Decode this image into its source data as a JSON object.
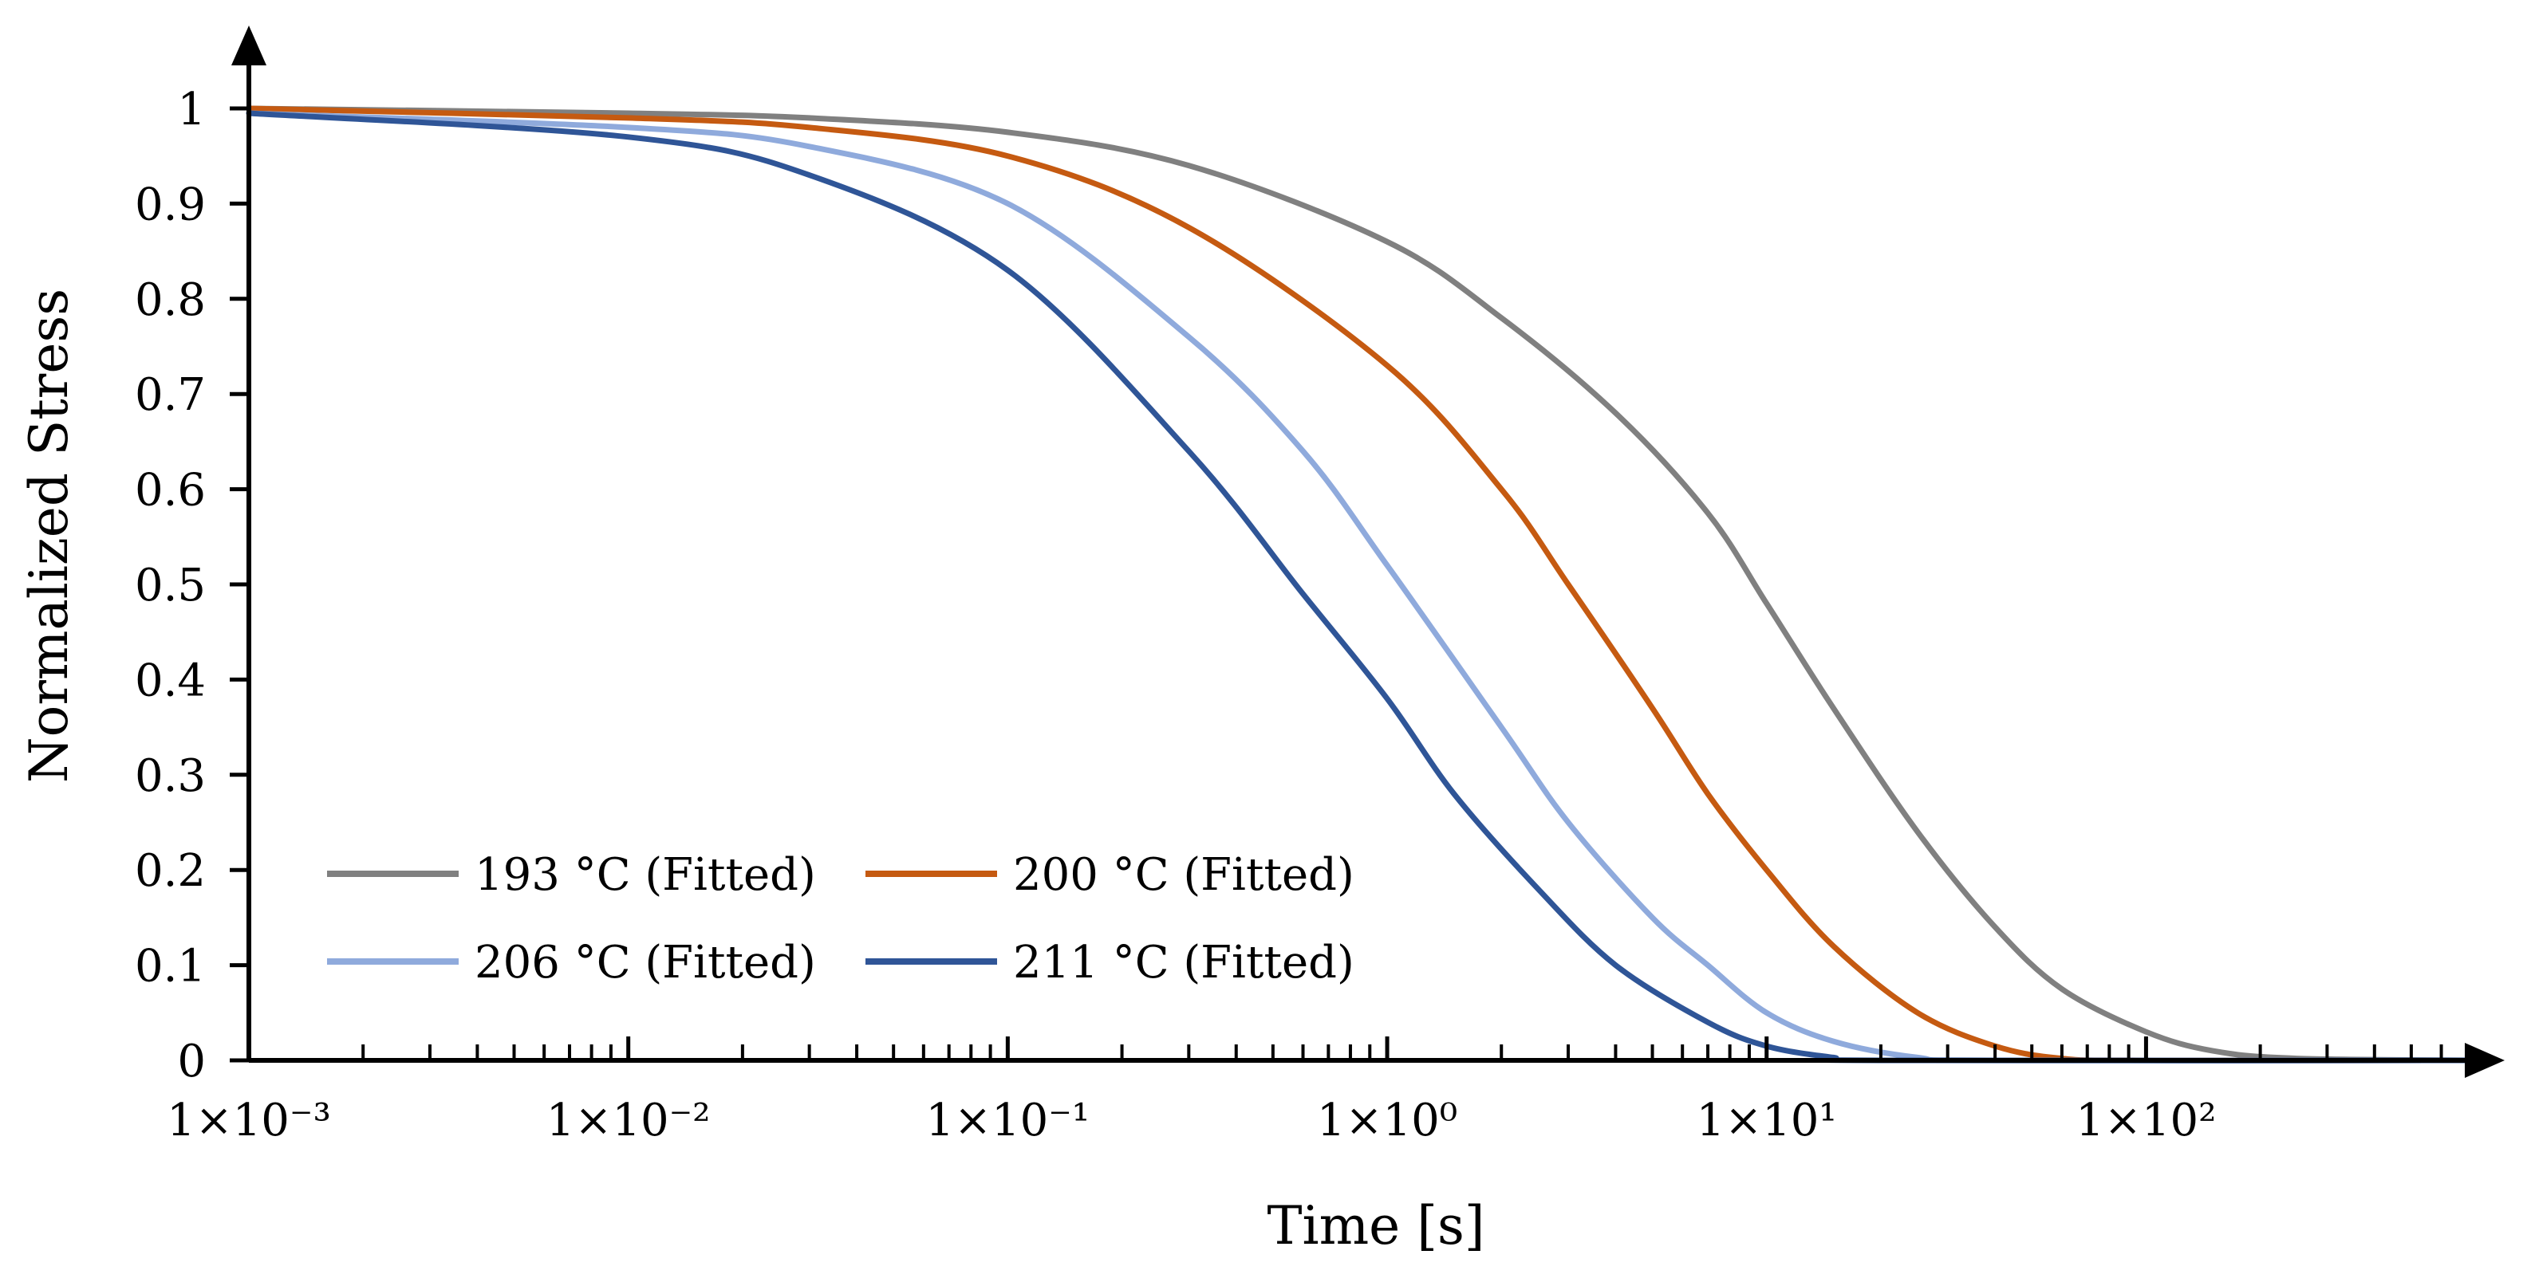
{
  "chart_data": {
    "type": "line",
    "title": "",
    "xlabel": "Time [s]",
    "ylabel": "Normalized Stress",
    "xscale": "log",
    "xlim": [
      0.001,
      800
    ],
    "ylim": [
      0,
      1
    ],
    "grid": false,
    "legend_position": "bottom-left",
    "x_ticks": [
      {
        "value": 0.001,
        "label": "1×10⁻³"
      },
      {
        "value": 0.01,
        "label": "1×10⁻²"
      },
      {
        "value": 0.1,
        "label": "1×10⁻¹"
      },
      {
        "value": 1,
        "label": "1×10⁰"
      },
      {
        "value": 10,
        "label": "1×10¹"
      },
      {
        "value": 100,
        "label": "1×10²"
      }
    ],
    "y_ticks": [
      {
        "value": 0,
        "label": "0"
      },
      {
        "value": 0.1,
        "label": "0.1"
      },
      {
        "value": 0.2,
        "label": "0.2"
      },
      {
        "value": 0.3,
        "label": "0.3"
      },
      {
        "value": 0.4,
        "label": "0.4"
      },
      {
        "value": 0.5,
        "label": "0.5"
      },
      {
        "value": 0.6,
        "label": "0.6"
      },
      {
        "value": 0.7,
        "label": "0.7"
      },
      {
        "value": 0.8,
        "label": "0.8"
      },
      {
        "value": 0.9,
        "label": "0.9"
      },
      {
        "value": 1,
        "label": "1"
      }
    ],
    "series": [
      {
        "name": "193 °C (Fitted)",
        "color": "#808080",
        "x": [
          0.001,
          0.01,
          0.03,
          0.1,
          0.3,
          1,
          2,
          4,
          7,
          10,
          15,
          25,
          40,
          60,
          100,
          150,
          250,
          800
        ],
        "y": [
          1.0,
          0.995,
          0.99,
          0.975,
          0.94,
          0.86,
          0.78,
          0.68,
          0.575,
          0.48,
          0.37,
          0.24,
          0.14,
          0.075,
          0.03,
          0.01,
          0.002,
          0.0
        ]
      },
      {
        "name": "200 °C (Fitted)",
        "color": "#c55a11",
        "x": [
          0.001,
          0.01,
          0.03,
          0.1,
          0.3,
          1,
          2,
          3,
          5,
          7,
          10,
          15,
          25,
          40,
          60,
          100,
          800
        ],
        "y": [
          1.0,
          0.99,
          0.98,
          0.95,
          0.875,
          0.73,
          0.6,
          0.5,
          0.37,
          0.28,
          0.2,
          0.12,
          0.05,
          0.015,
          0.002,
          0.0,
          0.0
        ]
      },
      {
        "name": "206 °C (Fitted)",
        "color": "#8faadc",
        "x": [
          0.001,
          0.01,
          0.03,
          0.1,
          0.3,
          0.6,
          1,
          2,
          3,
          5,
          7,
          10,
          15,
          25,
          40,
          800
        ],
        "y": [
          0.995,
          0.98,
          0.96,
          0.9,
          0.76,
          0.64,
          0.52,
          0.35,
          0.25,
          0.15,
          0.1,
          0.05,
          0.02,
          0.003,
          0.0,
          0.0
        ]
      },
      {
        "name": "211 °C (Fitted)",
        "color": "#2f5597",
        "x": [
          0.001,
          0.01,
          0.03,
          0.1,
          0.3,
          0.6,
          1,
          1.5,
          2.5,
          4,
          7,
          10,
          15,
          20,
          800
        ],
        "y": [
          0.995,
          0.97,
          0.93,
          0.83,
          0.64,
          0.49,
          0.38,
          0.28,
          0.18,
          0.1,
          0.04,
          0.015,
          0.003,
          0.0,
          0.0
        ]
      }
    ]
  }
}
